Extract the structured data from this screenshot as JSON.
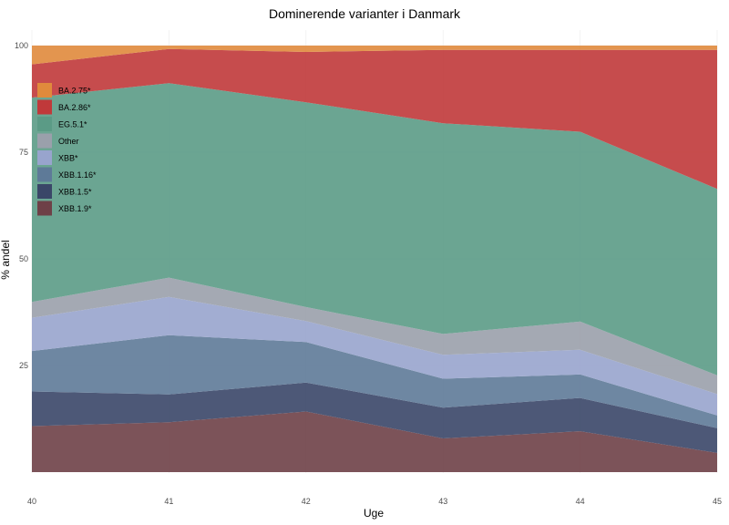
{
  "chart_data": {
    "type": "area",
    "stacked": true,
    "title": "Dominerende varianter i Danmark",
    "xlabel": "Uge",
    "ylabel": "% andel",
    "x": [
      40,
      41,
      42,
      43,
      44,
      45
    ],
    "x_tick_labels": [
      "40",
      "41",
      "42",
      "43",
      "44",
      "45"
    ],
    "y_ticks": [
      25,
      50,
      75,
      100
    ],
    "y_tick_labels": [
      "25",
      "50",
      "75",
      "100"
    ],
    "ylim": [
      0,
      100
    ],
    "legend_position": "top-left",
    "stack_order_bottom_to_top": [
      "XBB.1.9*",
      "XBB.1.5*",
      "XBB.1.16*",
      "XBB*",
      "Other",
      "EG.5.1*",
      "BA.2.86*",
      "BA.2.75*"
    ],
    "series": [
      {
        "name": "BA.2.75*",
        "color": "#e08a3c",
        "values": [
          4.4,
          0.8,
          1.5,
          1.0,
          1.0,
          1.0
        ]
      },
      {
        "name": "BA.2.86*",
        "color": "#c0393a",
        "values": [
          7.8,
          8.0,
          11.8,
          17.2,
          19.2,
          32.6
        ]
      },
      {
        "name": "EG.5.1*",
        "color": "#5b9b86",
        "values": [
          47.9,
          45.6,
          48.0,
          49.4,
          44.5,
          43.7
        ]
      },
      {
        "name": "Other",
        "color": "#9aa0ab",
        "values": [
          3.7,
          4.5,
          3.3,
          4.9,
          6.6,
          4.4
        ]
      },
      {
        "name": "XBB*",
        "color": "#98a4cd",
        "values": [
          7.8,
          9.0,
          4.9,
          5.6,
          5.8,
          5.0
        ]
      },
      {
        "name": "XBB.1.16*",
        "color": "#5e7a98",
        "values": [
          9.5,
          13.9,
          9.5,
          6.8,
          5.5,
          3.0
        ]
      },
      {
        "name": "XBB.1.5*",
        "color": "#3a4668",
        "values": [
          8.1,
          6.5,
          6.8,
          7.2,
          7.8,
          5.8
        ]
      },
      {
        "name": "XBB.1.9*",
        "color": "#6e4047",
        "values": [
          10.8,
          11.7,
          14.2,
          7.9,
          9.6,
          4.5
        ]
      }
    ],
    "legend_order": [
      "BA.2.75*",
      "BA.2.86*",
      "EG.5.1*",
      "Other",
      "XBB*",
      "XBB.1.16*",
      "XBB.1.5*",
      "XBB.1.9*"
    ]
  }
}
